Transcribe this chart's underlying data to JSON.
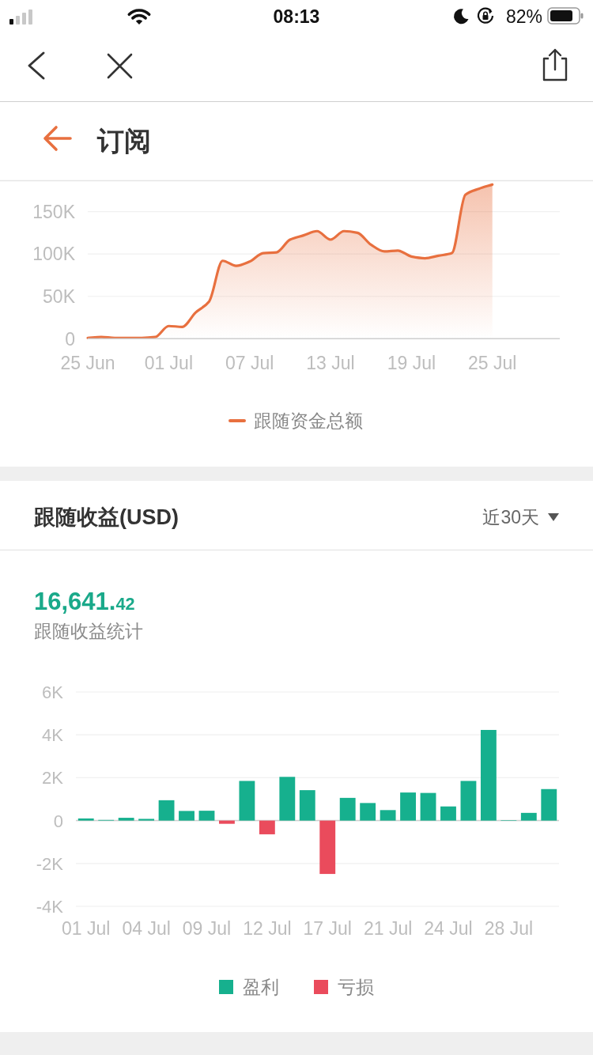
{
  "chart_data": [
    {
      "type": "area",
      "title": "订阅",
      "annotations": [
        "08:13",
        "82%"
      ],
      "x": [
        "--06-25",
        "--06-26",
        "--06-27",
        "--06-28",
        "--06-29",
        "--06-30",
        "--07-01",
        "--07-02",
        "--07-03",
        "--07-04",
        "--07-05",
        "--07-06",
        "--07-07",
        "--07-08",
        "--07-09",
        "--07-10",
        "--07-11",
        "--07-12",
        "--07-13",
        "--07-14",
        "--07-15",
        "--07-16",
        "--07-17",
        "--07-18",
        "--07-19",
        "--07-20",
        "--07-21",
        "--07-22",
        "--07-23",
        "--07-24",
        "--07-25"
      ],
      "series": [
        {
          "name": "跟随资金总额",
          "color": "#e8703f",
          "values": [
            1000,
            2000,
            1000,
            1000,
            1000,
            2000,
            15000,
            14000,
            31000,
            44000,
            92000,
            86000,
            91000,
            101000,
            102000,
            117000,
            122000,
            127000,
            117000,
            127000,
            125000,
            111000,
            103000,
            104000,
            97000,
            95000,
            98000,
            101000,
            170000,
            177000,
            182000
          ]
        }
      ],
      "xlim": [
        "--06-25",
        "--07-30"
      ],
      "xticks": [
        {
          "value": "--06-25",
          "label": "25 Jun"
        },
        {
          "value": "--07-01",
          "label": "01 Jul"
        },
        {
          "value": "--07-07",
          "label": "07 Jul"
        },
        {
          "value": "--07-13",
          "label": "13 Jul"
        },
        {
          "value": "--07-19",
          "label": "19 Jul"
        },
        {
          "value": "--07-25",
          "label": "25 Jul"
        }
      ],
      "ylim": [
        0,
        187000
      ],
      "yticks": [
        0,
        {
          "value": 50000,
          "label": "50K"
        },
        {
          "value": 100000,
          "label": "100K"
        },
        {
          "value": 150000,
          "label": "150K"
        }
      ],
      "grid": "y",
      "legend": "bottom"
    },
    {
      "type": "bar",
      "title": "跟随收益(USD)",
      "subtitle": "跟随收益统计",
      "annotations": [
        "近30天",
        "16,641.42"
      ],
      "categories": [
        "01 Jul",
        null,
        null,
        "04 Jul",
        null,
        null,
        "09 Jul",
        null,
        null,
        "12 Jul",
        null,
        null,
        "17 Jul",
        null,
        null,
        "21 Jul",
        null,
        null,
        "24 Jul",
        null,
        null,
        "28 Jul",
        null,
        null
      ],
      "series": [
        {
          "name": "盈利",
          "color": "#16b08e",
          "values": [
            100,
            30,
            130,
            80,
            950,
            450,
            460,
            null,
            1850,
            null,
            2040,
            1420,
            null,
            1060,
            820,
            490,
            1310,
            1290,
            660,
            1850,
            4230,
            20,
            360,
            1470
          ]
        },
        {
          "name": "亏损",
          "color": "#ea4b5c",
          "values": [
            null,
            null,
            null,
            null,
            null,
            null,
            null,
            -150,
            null,
            -640,
            null,
            null,
            -2490,
            null,
            null,
            null,
            null,
            null,
            null,
            null,
            null,
            null,
            null,
            null
          ]
        }
      ],
      "stacked": true,
      "ylim": [
        -4000,
        6000
      ],
      "yticks": [
        {
          "value": -4000,
          "label": "-4K"
        },
        {
          "value": -2000,
          "label": "-2K"
        },
        0,
        {
          "value": 2000,
          "label": "2K"
        },
        {
          "value": 4000,
          "label": "4K"
        },
        {
          "value": 6000,
          "label": "6K"
        }
      ],
      "grid": "y",
      "legend": "bottom"
    }
  ]
}
